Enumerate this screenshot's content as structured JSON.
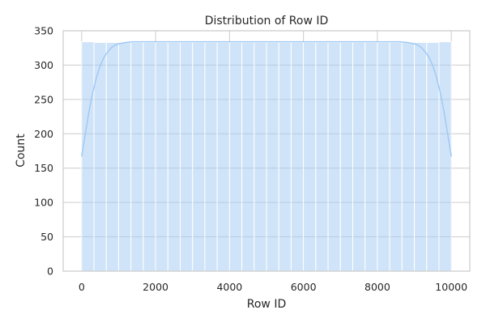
{
  "chart_data": {
    "type": "bar",
    "title": "Distribution of Row ID",
    "xlabel": "Row ID",
    "ylabel": "Count",
    "xlim": [
      -500,
      10500
    ],
    "ylim": [
      0,
      350
    ],
    "x_ticks": [
      0,
      2000,
      4000,
      6000,
      8000,
      10000
    ],
    "y_ticks": [
      0,
      50,
      100,
      150,
      200,
      250,
      300,
      350
    ],
    "grid": true,
    "bar_color": "#a1c9f4",
    "kde_color": "#a1c9f4",
    "bins": [
      {
        "x0": 0,
        "x1": 333.33,
        "count": 334
      },
      {
        "x0": 333.33,
        "x1": 666.67,
        "count": 333
      },
      {
        "x0": 666.67,
        "x1": 1000,
        "count": 333
      },
      {
        "x0": 1000,
        "x1": 1333.33,
        "count": 333
      },
      {
        "x0": 1333.33,
        "x1": 1666.67,
        "count": 333
      },
      {
        "x0": 1666.67,
        "x1": 2000,
        "count": 333
      },
      {
        "x0": 2000,
        "x1": 2333.33,
        "count": 333
      },
      {
        "x0": 2333.33,
        "x1": 2666.67,
        "count": 333
      },
      {
        "x0": 2666.67,
        "x1": 3000,
        "count": 333
      },
      {
        "x0": 3000,
        "x1": 3333.33,
        "count": 333
      },
      {
        "x0": 3333.33,
        "x1": 3666.67,
        "count": 333
      },
      {
        "x0": 3666.67,
        "x1": 4000,
        "count": 333
      },
      {
        "x0": 4000,
        "x1": 4333.33,
        "count": 333
      },
      {
        "x0": 4333.33,
        "x1": 4666.67,
        "count": 333
      },
      {
        "x0": 4666.67,
        "x1": 5000,
        "count": 333
      },
      {
        "x0": 5000,
        "x1": 5333.33,
        "count": 333
      },
      {
        "x0": 5333.33,
        "x1": 5666.67,
        "count": 333
      },
      {
        "x0": 5666.67,
        "x1": 6000,
        "count": 333
      },
      {
        "x0": 6000,
        "x1": 6333.33,
        "count": 333
      },
      {
        "x0": 6333.33,
        "x1": 6666.67,
        "count": 333
      },
      {
        "x0": 6666.67,
        "x1": 7000,
        "count": 333
      },
      {
        "x0": 7000,
        "x1": 7333.33,
        "count": 333
      },
      {
        "x0": 7333.33,
        "x1": 7666.67,
        "count": 333
      },
      {
        "x0": 7666.67,
        "x1": 8000,
        "count": 333
      },
      {
        "x0": 8000,
        "x1": 8333.33,
        "count": 333
      },
      {
        "x0": 8333.33,
        "x1": 8666.67,
        "count": 333
      },
      {
        "x0": 8666.67,
        "x1": 9000,
        "count": 333
      },
      {
        "x0": 9000,
        "x1": 9333.33,
        "count": 333
      },
      {
        "x0": 9333.33,
        "x1": 9666.67,
        "count": 333
      },
      {
        "x0": 9666.67,
        "x1": 10000,
        "count": 334
      }
    ],
    "kde": {
      "x": [
        0,
        100,
        200,
        300,
        400,
        500,
        600,
        700,
        800,
        900,
        1000,
        1200,
        1400,
        2000,
        3000,
        4000,
        5000,
        6000,
        7000,
        8000,
        8600,
        8800,
        9000,
        9100,
        9200,
        9300,
        9400,
        9500,
        9600,
        9700,
        9800,
        9900,
        10000
      ],
      "y": [
        167,
        200,
        233,
        260,
        282,
        299,
        311,
        319,
        325,
        329,
        331,
        333,
        334,
        334,
        334,
        334,
        334,
        334,
        334,
        334,
        334,
        333,
        331,
        329,
        325,
        319,
        311,
        299,
        282,
        260,
        233,
        200,
        167
      ]
    }
  }
}
